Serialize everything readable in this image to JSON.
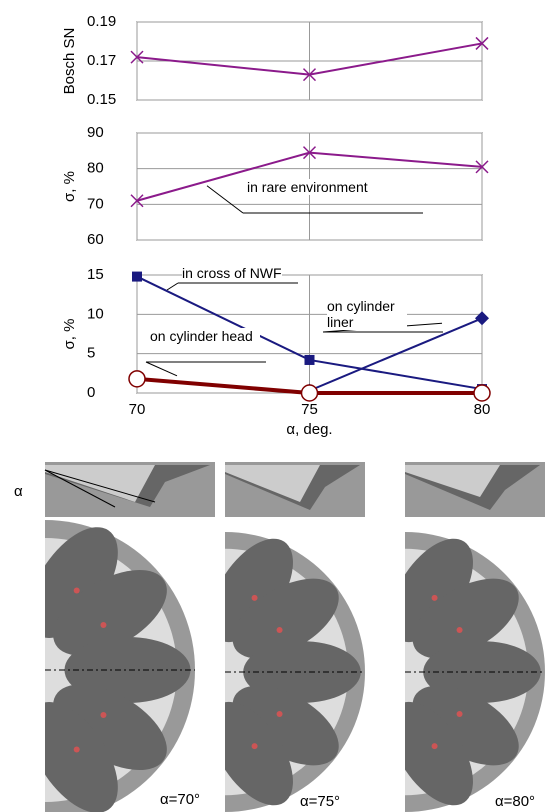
{
  "chart_data": [
    {
      "type": "line",
      "y_label": "Bosch SN",
      "x": [
        70,
        75,
        80
      ],
      "xlim": [
        70,
        80
      ],
      "xticks": [
        70,
        75,
        80
      ],
      "xtick_labels_shown": false,
      "ylim": [
        0.15,
        0.19
      ],
      "yticks": [
        0.15,
        0.17,
        0.19
      ],
      "grid": true,
      "series": [
        {
          "name": "Bosch SN",
          "color": "#8b1a8b",
          "marker": "x",
          "values": [
            0.172,
            0.163,
            0.179
          ]
        }
      ]
    },
    {
      "type": "line",
      "y_label": "σ, %",
      "x": [
        70,
        75,
        80
      ],
      "xlim": [
        70,
        80
      ],
      "xticks": [
        70,
        75,
        80
      ],
      "xtick_labels_shown": false,
      "ylim": [
        60,
        90
      ],
      "yticks": [
        60,
        70,
        80,
        90
      ],
      "grid": true,
      "series": [
        {
          "name": "in rare environment",
          "color": "#8b1a8b",
          "marker": "x",
          "values": [
            71,
            84.5,
            80.5
          ]
        }
      ]
    },
    {
      "type": "line",
      "y_label": "σ, %",
      "x_label": "α, deg.",
      "x": [
        70,
        75,
        80
      ],
      "xlim": [
        70,
        80
      ],
      "xticks": [
        70,
        75,
        80
      ],
      "xtick_labels_shown": true,
      "ylim": [
        0,
        15
      ],
      "yticks": [
        0,
        5,
        10,
        15
      ],
      "grid": true,
      "series": [
        {
          "name": "in cross of NWF",
          "color": "#1a1a80",
          "marker": "square",
          "values": [
            14.8,
            4.2,
            0.5
          ]
        },
        {
          "name": "on cylinder liner",
          "color": "#1a1a80",
          "marker": "diamond",
          "values": [
            null,
            0.3,
            9.5
          ]
        },
        {
          "name": "on cylinder head",
          "color": "#800000",
          "marker": "circle-open",
          "values": [
            1.8,
            0,
            0
          ]
        }
      ]
    }
  ],
  "figures": {
    "alpha_label": "α",
    "captions": [
      "α=70°",
      "α=75°",
      "α=80°"
    ]
  }
}
